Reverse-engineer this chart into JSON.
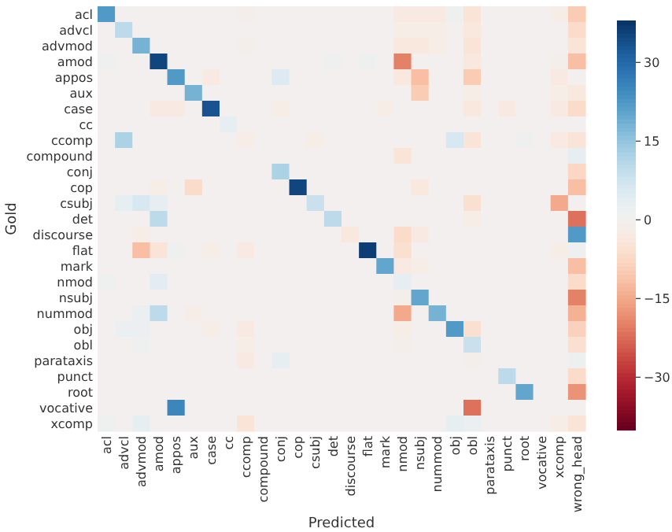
{
  "chart_data": {
    "type": "heatmap",
    "xlabel": "Predicted",
    "ylabel": "Gold",
    "categories": [
      "acl",
      "advcl",
      "advmod",
      "amod",
      "appos",
      "aux",
      "case",
      "cc",
      "ccomp",
      "compound",
      "conj",
      "cop",
      "csubj",
      "det",
      "discourse",
      "flat",
      "mark",
      "nmod",
      "nsubj",
      "nummod",
      "obj",
      "obl",
      "parataxis",
      "punct",
      "root",
      "vocative",
      "xcomp",
      "wrong_head"
    ],
    "y_categories": [
      "acl",
      "advcl",
      "advmod",
      "amod",
      "appos",
      "aux",
      "case",
      "cc",
      "ccomp",
      "compound",
      "conj",
      "cop",
      "csubj",
      "det",
      "discourse",
      "flat",
      "mark",
      "nmod",
      "nsubj",
      "nummod",
      "obj",
      "obl",
      "parataxis",
      "punct",
      "root",
      "vocative",
      "xcomp"
    ],
    "cells": [
      [
        22,
        0,
        0,
        0,
        0,
        0,
        0,
        0,
        -1,
        0,
        0,
        0,
        0,
        0,
        0,
        0,
        0,
        -3,
        -3,
        -3,
        1,
        -5,
        0,
        0,
        0,
        0,
        -2,
        -10
      ],
      [
        0,
        10,
        0,
        0,
        0,
        0,
        0,
        0,
        0,
        0,
        0,
        0,
        0,
        0,
        0,
        0,
        0,
        -2,
        -2,
        -2,
        0,
        -4,
        0,
        0,
        0,
        0,
        0,
        -7
      ],
      [
        0,
        0,
        18,
        0,
        0,
        0,
        0,
        0,
        -1,
        0,
        0,
        0,
        0,
        0,
        0,
        0,
        0,
        -4,
        -4,
        -2,
        0,
        -5,
        0,
        0,
        0,
        0,
        0,
        -5
      ],
      [
        1,
        0,
        0,
        35,
        0,
        0,
        0,
        0,
        0,
        0,
        0,
        0,
        0,
        1,
        0,
        1,
        0,
        -20,
        0,
        0,
        0,
        -4,
        0,
        0,
        0,
        0,
        -1,
        -12
      ],
      [
        0,
        0,
        0,
        0,
        22,
        0,
        -3,
        0,
        0,
        0,
        5,
        0,
        0,
        0,
        0,
        0,
        0,
        -4,
        -12,
        0,
        0,
        -10,
        0,
        0,
        0,
        0,
        -3,
        0
      ],
      [
        0,
        0,
        0,
        0,
        0,
        18,
        0,
        0,
        0,
        0,
        0,
        0,
        0,
        0,
        0,
        0,
        0,
        0,
        -10,
        0,
        0,
        -2,
        0,
        0,
        0,
        0,
        -2,
        -4
      ],
      [
        0,
        0,
        0,
        -3,
        -3,
        0,
        33,
        0,
        0,
        0,
        -2,
        0,
        0,
        0,
        0,
        0,
        -2,
        0,
        0,
        0,
        0,
        -4,
        0,
        -3,
        0,
        0,
        -3,
        -7
      ],
      [
        0,
        0,
        0,
        0,
        0,
        0,
        0,
        3,
        0,
        0,
        0,
        0,
        0,
        0,
        0,
        0,
        0,
        0,
        0,
        0,
        0,
        0,
        0,
        0,
        0,
        0,
        0,
        0
      ],
      [
        0,
        12,
        0,
        0,
        0,
        0,
        0,
        0,
        -2,
        0,
        0,
        0,
        -2,
        0,
        0,
        0,
        0,
        0,
        0,
        0,
        6,
        -5,
        0,
        0,
        1,
        0,
        -3,
        -5
      ],
      [
        0,
        0,
        0,
        0,
        0,
        0,
        0,
        0,
        0,
        0,
        0,
        0,
        0,
        0,
        0,
        0,
        0,
        -5,
        0,
        0,
        0,
        0,
        0,
        0,
        0,
        0,
        0,
        3
      ],
      [
        0,
        0,
        0,
        0,
        0,
        0,
        0,
        0,
        0,
        0,
        12,
        0,
        0,
        0,
        0,
        0,
        0,
        0,
        0,
        0,
        0,
        0,
        0,
        0,
        0,
        0,
        0,
        -8
      ],
      [
        0,
        0,
        0,
        -2,
        0,
        -7,
        0,
        0,
        0,
        0,
        0,
        35,
        0,
        0,
        0,
        0,
        0,
        0,
        -4,
        0,
        0,
        0,
        0,
        0,
        0,
        0,
        0,
        -12
      ],
      [
        0,
        3,
        6,
        3,
        0,
        0,
        0,
        0,
        0,
        0,
        0,
        0,
        8,
        0,
        0,
        0,
        0,
        0,
        0,
        0,
        0,
        -6,
        0,
        0,
        0,
        0,
        -15,
        0
      ],
      [
        0,
        0,
        0,
        10,
        0,
        0,
        0,
        0,
        0,
        0,
        0,
        0,
        0,
        10,
        0,
        0,
        0,
        0,
        0,
        0,
        0,
        -2,
        0,
        0,
        0,
        0,
        0,
        -22
      ],
      [
        0,
        0,
        -2,
        0,
        0,
        0,
        0,
        0,
        0,
        0,
        0,
        0,
        0,
        0,
        -4,
        0,
        0,
        -7,
        -3,
        0,
        0,
        0,
        0,
        0,
        0,
        0,
        0,
        22
      ],
      [
        0,
        0,
        -12,
        -5,
        1,
        0,
        -2,
        0,
        -3,
        0,
        0,
        0,
        0,
        0,
        0,
        36,
        0,
        -6,
        0,
        0,
        0,
        0,
        0,
        0,
        0,
        0,
        -2,
        1
      ],
      [
        0,
        0,
        0,
        0,
        0,
        0,
        0,
        0,
        0,
        0,
        0,
        0,
        0,
        0,
        0,
        0,
        20,
        -3,
        -2,
        0,
        0,
        0,
        0,
        0,
        0,
        0,
        0,
        -12
      ],
      [
        1,
        0,
        0,
        4,
        0,
        0,
        0,
        0,
        0,
        0,
        0,
        0,
        0,
        0,
        0,
        0,
        0,
        3,
        0,
        0,
        0,
        0,
        0,
        0,
        0,
        0,
        0,
        -7
      ],
      [
        0,
        0,
        0,
        0,
        0,
        0,
        0,
        0,
        0,
        0,
        0,
        0,
        0,
        0,
        0,
        0,
        0,
        -1,
        20,
        0,
        0,
        0,
        0,
        0,
        0,
        0,
        0,
        -20
      ],
      [
        0,
        0,
        2,
        10,
        0,
        -2,
        0,
        0,
        0,
        0,
        0,
        0,
        0,
        0,
        0,
        0,
        0,
        -15,
        0,
        18,
        0,
        0,
        0,
        0,
        0,
        0,
        0,
        -14
      ],
      [
        0,
        2,
        2,
        0,
        0,
        0,
        -2,
        0,
        -3,
        0,
        0,
        0,
        0,
        0,
        0,
        0,
        0,
        -2,
        0,
        0,
        22,
        -6,
        0,
        0,
        0,
        0,
        0,
        -9
      ],
      [
        0,
        0,
        1,
        0,
        0,
        0,
        0,
        0,
        -2,
        0,
        0,
        0,
        0,
        0,
        0,
        0,
        0,
        -1,
        0,
        0,
        0,
        8,
        0,
        0,
        0,
        0,
        0,
        -6
      ],
      [
        0,
        0,
        0,
        0,
        0,
        0,
        0,
        0,
        -3,
        0,
        3,
        0,
        0,
        0,
        0,
        0,
        0,
        0,
        0,
        0,
        0,
        -1,
        0,
        0,
        0,
        0,
        0,
        1
      ],
      [
        0,
        0,
        0,
        0,
        0,
        0,
        0,
        0,
        0,
        0,
        0,
        0,
        0,
        0,
        0,
        0,
        0,
        0,
        0,
        0,
        0,
        0,
        0,
        10,
        0,
        0,
        0,
        -7
      ],
      [
        0,
        0,
        0,
        0,
        0,
        0,
        0,
        0,
        0,
        0,
        0,
        0,
        0,
        0,
        0,
        0,
        0,
        0,
        0,
        0,
        0,
        0,
        0,
        0,
        20,
        0,
        0,
        -18
      ],
      [
        0,
        0,
        0,
        0,
        25,
        0,
        0,
        0,
        0,
        0,
        0,
        0,
        0,
        0,
        0,
        0,
        0,
        0,
        0,
        0,
        0,
        -22,
        0,
        0,
        0,
        0,
        0,
        0
      ],
      [
        1,
        0,
        3,
        0,
        0,
        0,
        0,
        0,
        -5,
        0,
        0,
        0,
        0,
        0,
        0,
        0,
        0,
        0,
        0,
        0,
        3,
        2,
        0,
        0,
        0,
        0,
        -2,
        -5
      ]
    ],
    "clim": [
      -40,
      38
    ],
    "cticks": [
      {
        "value": 30,
        "label": "30"
      },
      {
        "value": 15,
        "label": "15"
      },
      {
        "value": 0,
        "label": "0"
      },
      {
        "value": -15,
        "label": "−15"
      },
      {
        "value": -30,
        "label": "−30"
      }
    ]
  }
}
